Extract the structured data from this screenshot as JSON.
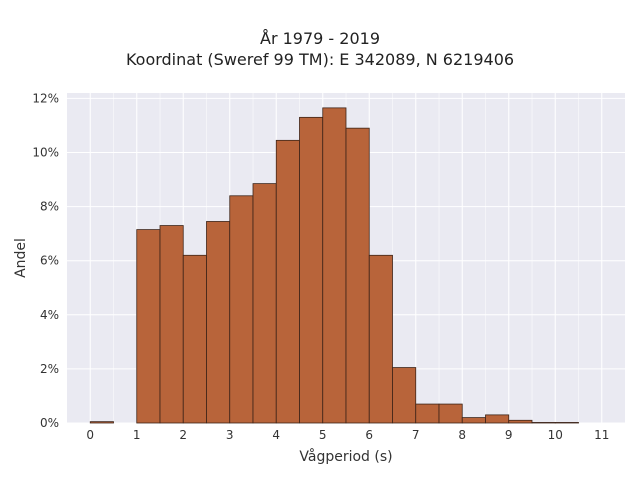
{
  "chart_data": {
    "type": "bar",
    "title_lines": [
      "År 1979 - 2019",
      "Koordinat (Sweref 99 TM): E 342089, N 6219406"
    ],
    "xlabel": "Vågperiod (s)",
    "ylabel": "Andel",
    "xlim": [
      -0.5,
      11.5
    ],
    "ylim": [
      0,
      12.2
    ],
    "x_ticks": [
      "0",
      "1",
      "2",
      "3",
      "4",
      "5",
      "6",
      "7",
      "8",
      "9",
      "10",
      "11"
    ],
    "y_ticks": [
      "0%",
      "2%",
      "4%",
      "6%",
      "8%",
      "10%",
      "12%"
    ],
    "bin_width": 0.5,
    "bins": [
      {
        "x0": 0.0,
        "value": 0.05
      },
      {
        "x0": 0.5,
        "value": 0.0
      },
      {
        "x0": 1.0,
        "value": 7.15
      },
      {
        "x0": 1.5,
        "value": 7.3
      },
      {
        "x0": 2.0,
        "value": 6.2
      },
      {
        "x0": 2.5,
        "value": 7.45
      },
      {
        "x0": 3.0,
        "value": 8.4
      },
      {
        "x0": 3.5,
        "value": 8.85
      },
      {
        "x0": 4.0,
        "value": 10.45
      },
      {
        "x0": 4.5,
        "value": 11.3
      },
      {
        "x0": 5.0,
        "value": 11.65
      },
      {
        "x0": 5.5,
        "value": 10.9
      },
      {
        "x0": 6.0,
        "value": 6.2
      },
      {
        "x0": 6.5,
        "value": 2.05
      },
      {
        "x0": 7.0,
        "value": 0.7
      },
      {
        "x0": 7.5,
        "value": 0.7
      },
      {
        "x0": 8.0,
        "value": 0.2
      },
      {
        "x0": 8.5,
        "value": 0.3
      },
      {
        "x0": 9.0,
        "value": 0.1
      },
      {
        "x0": 9.5,
        "value": 0.02
      },
      {
        "x0": 10.0,
        "value": 0.02
      }
    ],
    "grid": true,
    "colors": {
      "bar_fill": "#b8643a",
      "bar_edge": "#3d2418",
      "plot_bg": "#eaeaf2",
      "grid": "#ffffff"
    }
  }
}
